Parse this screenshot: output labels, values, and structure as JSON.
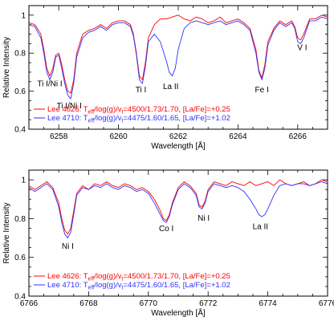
{
  "chart_data": [
    {
      "type": "line",
      "xlabel": "Wavelength [Å]",
      "ylabel": "Relative Intensity",
      "xlim": [
        6257,
        6267
      ],
      "ylim": [
        0.4,
        1.05
      ],
      "xticks": [
        6258,
        6260,
        6262,
        6264,
        6266
      ],
      "yticks": [
        0.4,
        0.6,
        0.8,
        1
      ],
      "legend_position": "bottom-left",
      "line_labels": [
        {
          "text": "Ti I/Ni I",
          "x": 6257.7,
          "y": 0.625
        },
        {
          "text": "Ti I/Ni I",
          "x": 6258.35,
          "y": 0.51
        },
        {
          "text": "Ti I",
          "x": 6260.75,
          "y": 0.595
        },
        {
          "text": "La II",
          "x": 6261.75,
          "y": 0.61
        },
        {
          "text": "Fe I",
          "x": 6264.8,
          "y": 0.595
        },
        {
          "text": "V I",
          "x": 6266.15,
          "y": 0.815
        }
      ],
      "series": [
        {
          "name": "Lee 4626",
          "legend_text": {
            "prefix": "Lee 4626: T",
            "sub": "eff",
            "mid": "/log(g)/v",
            "sub2": "t",
            "suffix": "=4500/1.73/1.70, [La/Fe]=+0.25"
          },
          "color": "#ff0000",
          "x": [
            6257.0,
            6257.2,
            6257.4,
            6257.5,
            6257.6,
            6257.7,
            6257.8,
            6257.9,
            6258.0,
            6258.1,
            6258.2,
            6258.3,
            6258.4,
            6258.5,
            6258.6,
            6258.8,
            6259.0,
            6259.2,
            6259.4,
            6259.6,
            6259.8,
            6260.0,
            6260.2,
            6260.4,
            6260.5,
            6260.6,
            6260.7,
            6260.8,
            6260.9,
            6261.0,
            6261.2,
            6261.4,
            6261.6,
            6261.8,
            6262.0,
            6262.2,
            6262.4,
            6262.6,
            6262.8,
            6263.0,
            6263.2,
            6263.4,
            6263.6,
            6263.8,
            6264.0,
            6264.2,
            6264.4,
            6264.6,
            6264.7,
            6264.8,
            6264.9,
            6265.0,
            6265.2,
            6265.4,
            6265.6,
            6265.8,
            6265.9,
            6266.0,
            6266.1,
            6266.2,
            6266.4,
            6266.6,
            6266.8,
            6267.0
          ],
          "y": [
            0.96,
            0.95,
            0.9,
            0.82,
            0.72,
            0.68,
            0.72,
            0.79,
            0.8,
            0.74,
            0.66,
            0.6,
            0.59,
            0.66,
            0.8,
            0.9,
            0.92,
            0.93,
            0.95,
            0.93,
            0.96,
            0.97,
            0.97,
            0.95,
            0.9,
            0.8,
            0.68,
            0.66,
            0.75,
            0.88,
            0.95,
            0.98,
            0.98,
            0.99,
            1.0,
            0.98,
            0.97,
            0.99,
            0.98,
            0.96,
            0.97,
            0.99,
            0.96,
            0.97,
            0.98,
            0.96,
            0.93,
            0.82,
            0.71,
            0.67,
            0.74,
            0.86,
            0.93,
            0.97,
            0.95,
            0.97,
            0.94,
            0.88,
            0.87,
            0.9,
            0.98,
            0.98,
            1.0,
            0.99
          ]
        },
        {
          "name": "Lee 4710",
          "legend_text": {
            "prefix": "Lee 4710: T",
            "sub": "eff",
            "mid": "/log(g)/v",
            "sub2": "t",
            "suffix": "=4475/1.60/1.65, [La/Fe]=+1.02"
          },
          "color": "#3030ff",
          "x": [
            6257.0,
            6257.2,
            6257.4,
            6257.5,
            6257.6,
            6257.7,
            6257.8,
            6257.9,
            6258.0,
            6258.1,
            6258.2,
            6258.3,
            6258.4,
            6258.5,
            6258.6,
            6258.8,
            6259.0,
            6259.2,
            6259.4,
            6259.6,
            6259.8,
            6260.0,
            6260.2,
            6260.4,
            6260.5,
            6260.6,
            6260.7,
            6260.8,
            6260.9,
            6261.0,
            6261.2,
            6261.4,
            6261.6,
            6261.7,
            6261.8,
            6261.9,
            6262.0,
            6262.2,
            6262.4,
            6262.6,
            6262.8,
            6263.0,
            6263.2,
            6263.4,
            6263.6,
            6263.8,
            6264.0,
            6264.2,
            6264.4,
            6264.6,
            6264.7,
            6264.8,
            6264.9,
            6265.0,
            6265.2,
            6265.4,
            6265.6,
            6265.8,
            6265.9,
            6266.0,
            6266.1,
            6266.2,
            6266.4,
            6266.6,
            6266.8,
            6267.0
          ],
          "y": [
            0.95,
            0.94,
            0.88,
            0.8,
            0.7,
            0.66,
            0.7,
            0.78,
            0.79,
            0.72,
            0.64,
            0.58,
            0.56,
            0.64,
            0.78,
            0.88,
            0.91,
            0.92,
            0.94,
            0.92,
            0.95,
            0.96,
            0.96,
            0.94,
            0.89,
            0.79,
            0.66,
            0.64,
            0.73,
            0.86,
            0.9,
            0.86,
            0.76,
            0.7,
            0.68,
            0.72,
            0.82,
            0.93,
            0.96,
            0.97,
            0.96,
            0.95,
            0.96,
            0.97,
            0.95,
            0.96,
            0.97,
            0.95,
            0.92,
            0.8,
            0.7,
            0.66,
            0.72,
            0.84,
            0.92,
            0.96,
            0.94,
            0.96,
            0.93,
            0.86,
            0.85,
            0.88,
            0.97,
            0.97,
            0.99,
            0.98
          ]
        }
      ]
    },
    {
      "type": "line",
      "xlabel": "Wavelength [Å]",
      "ylabel": "Relative Intensity",
      "xlim": [
        6766,
        6776
      ],
      "ylim": [
        0.4,
        1.05
      ],
      "xticks": [
        6766,
        6768,
        6770,
        6772,
        6774,
        6776
      ],
      "yticks": [
        0.4,
        0.6,
        0.8,
        1
      ],
      "legend_position": "bottom-left",
      "line_labels": [
        {
          "text": "Ni I",
          "x": 6767.3,
          "y": 0.645
        },
        {
          "text": "Co I",
          "x": 6770.6,
          "y": 0.735
        },
        {
          "text": "Ni I",
          "x": 6771.85,
          "y": 0.79
        },
        {
          "text": "La II",
          "x": 6773.75,
          "y": 0.745
        }
      ],
      "series": [
        {
          "name": "Lee 4626",
          "legend_text": {
            "prefix": "Lee 4626: T",
            "sub": "eff",
            "mid": "/log(g)/v",
            "sub2": "t",
            "suffix": "=4500/1.73/1.70, [La/Fe]=+0.25"
          },
          "color": "#ff0000",
          "x": [
            6766.0,
            6766.2,
            6766.4,
            6766.6,
            6766.8,
            6767.0,
            6767.1,
            6767.2,
            6767.3,
            6767.4,
            6767.5,
            6767.6,
            6767.8,
            6768.0,
            6768.2,
            6768.4,
            6768.6,
            6768.8,
            6769.0,
            6769.2,
            6769.4,
            6769.6,
            6769.8,
            6770.0,
            6770.2,
            6770.4,
            6770.5,
            6770.6,
            6770.7,
            6770.8,
            6771.0,
            6771.2,
            6771.4,
            6771.6,
            6771.7,
            6771.8,
            6771.9,
            6772.0,
            6772.2,
            6772.4,
            6772.6,
            6772.8,
            6773.0,
            6773.2,
            6773.4,
            6773.6,
            6773.8,
            6774.0,
            6774.2,
            6774.4,
            6774.6,
            6774.8,
            6775.0,
            6775.2,
            6775.4,
            6775.6,
            6775.8,
            6776.0
          ],
          "y": [
            0.97,
            0.95,
            0.97,
            0.99,
            0.96,
            0.88,
            0.8,
            0.74,
            0.72,
            0.75,
            0.84,
            0.93,
            0.97,
            0.95,
            0.98,
            0.97,
            0.99,
            0.97,
            0.96,
            0.98,
            0.97,
            0.95,
            0.96,
            0.94,
            0.9,
            0.84,
            0.8,
            0.79,
            0.82,
            0.88,
            0.96,
            0.99,
            0.97,
            0.93,
            0.87,
            0.86,
            0.89,
            0.95,
            0.99,
            0.98,
            0.97,
            0.99,
            0.98,
            0.97,
            0.99,
            0.97,
            0.98,
            0.99,
            0.97,
            1.0,
            0.98,
            0.97,
            0.98,
            0.99,
            0.97,
            0.98,
            1.0,
            0.99
          ]
        },
        {
          "name": "Lee 4710",
          "legend_text": {
            "prefix": "Lee 4710: T",
            "sub": "eff",
            "mid": "/log(g)/v",
            "sub2": "t",
            "suffix": "=4475/1.60/1.65, [La/Fe]=+1.02"
          },
          "color": "#3030ff",
          "x": [
            6766.0,
            6766.2,
            6766.4,
            6766.6,
            6766.8,
            6767.0,
            6767.1,
            6767.2,
            6767.3,
            6767.4,
            6767.5,
            6767.6,
            6767.8,
            6768.0,
            6768.2,
            6768.4,
            6768.6,
            6768.8,
            6769.0,
            6769.2,
            6769.4,
            6769.6,
            6769.8,
            6770.0,
            6770.2,
            6770.4,
            6770.5,
            6770.6,
            6770.7,
            6770.8,
            6771.0,
            6771.2,
            6771.4,
            6771.6,
            6771.7,
            6771.8,
            6771.9,
            6772.0,
            6772.2,
            6772.4,
            6772.6,
            6772.8,
            6773.0,
            6773.2,
            6773.4,
            6773.6,
            6773.7,
            6773.8,
            6773.9,
            6774.0,
            6774.2,
            6774.4,
            6774.6,
            6774.8,
            6775.0,
            6775.2,
            6775.4,
            6775.6,
            6775.8,
            6776.0
          ],
          "y": [
            0.96,
            0.94,
            0.96,
            0.98,
            0.95,
            0.86,
            0.78,
            0.72,
            0.7,
            0.73,
            0.82,
            0.92,
            0.96,
            0.95,
            0.97,
            0.96,
            0.98,
            0.96,
            0.95,
            0.97,
            0.96,
            0.94,
            0.95,
            0.93,
            0.88,
            0.82,
            0.79,
            0.78,
            0.81,
            0.87,
            0.95,
            0.98,
            0.96,
            0.92,
            0.86,
            0.85,
            0.88,
            0.94,
            0.98,
            0.97,
            0.96,
            0.97,
            0.96,
            0.94,
            0.9,
            0.85,
            0.82,
            0.81,
            0.82,
            0.85,
            0.92,
            0.97,
            0.98,
            0.97,
            0.98,
            0.98,
            0.97,
            0.98,
            0.99,
            0.98
          ]
        }
      ]
    }
  ]
}
